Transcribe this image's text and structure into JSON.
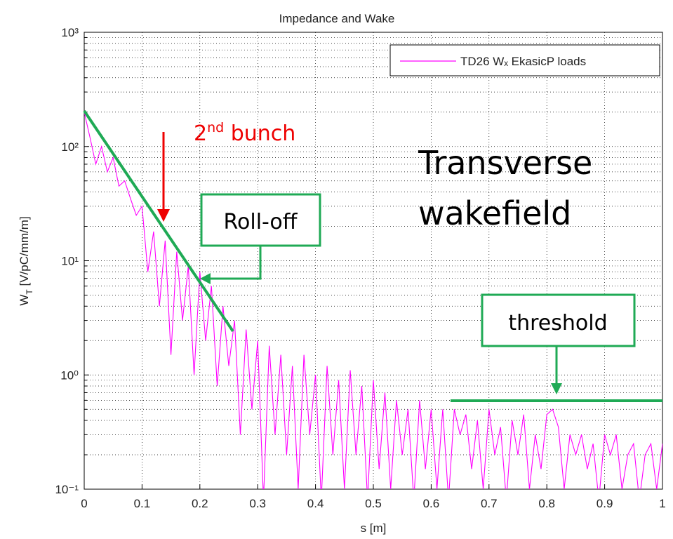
{
  "chart_data": {
    "type": "line",
    "title": "Impedance and Wake",
    "xlabel": "s [m]",
    "ylabel": [
      "W",
      "T",
      " [V/pC/mm/m]"
    ],
    "x": [
      0,
      0.01,
      0.02,
      0.03,
      0.04,
      0.05,
      0.06,
      0.07,
      0.08,
      0.09,
      0.1,
      0.11,
      0.12,
      0.13,
      0.14,
      0.15,
      0.16,
      0.17,
      0.18,
      0.19,
      0.2,
      0.21,
      0.22,
      0.23,
      0.24,
      0.25,
      0.26,
      0.27,
      0.28,
      0.29,
      0.3,
      0.31,
      0.32,
      0.33,
      0.34,
      0.35,
      0.36,
      0.37,
      0.38,
      0.39,
      0.4,
      0.41,
      0.42,
      0.43,
      0.44,
      0.45,
      0.46,
      0.47,
      0.48,
      0.49,
      0.5,
      0.51,
      0.52,
      0.53,
      0.54,
      0.55,
      0.56,
      0.57,
      0.58,
      0.59,
      0.6,
      0.61,
      0.62,
      0.63,
      0.64,
      0.65,
      0.66,
      0.67,
      0.68,
      0.69,
      0.7,
      0.71,
      0.72,
      0.73,
      0.74,
      0.75,
      0.76,
      0.77,
      0.78,
      0.79,
      0.8,
      0.81,
      0.82,
      0.83,
      0.84,
      0.85,
      0.86,
      0.87,
      0.88,
      0.89,
      0.9,
      0.91,
      0.92,
      0.93,
      0.94,
      0.95,
      0.96,
      0.97,
      0.98,
      0.99,
      1
    ],
    "series": [
      {
        "name": "TD26 Wₓ EkasicP loads",
        "color": "#ff00ff",
        "values": [
          200,
          120,
          70,
          100,
          60,
          80,
          45,
          50,
          35,
          25,
          30,
          8,
          18,
          4,
          15,
          1.5,
          12,
          3,
          9,
          1,
          8,
          2,
          6,
          0.8,
          4,
          1.2,
          3,
          0.3,
          2.5,
          0.5,
          2,
          0.08,
          1.8,
          0.3,
          1.5,
          0.2,
          1.2,
          0.1,
          1.5,
          0.3,
          1,
          0.08,
          1.2,
          0.2,
          0.9,
          0.1,
          1.1,
          0.2,
          0.8,
          0.08,
          0.9,
          0.15,
          0.7,
          0.1,
          0.6,
          0.2,
          0.5,
          0.08,
          0.6,
          0.15,
          0.5,
          0.1,
          0.5,
          0.08,
          0.5,
          0.3,
          0.45,
          0.15,
          0.4,
          0.1,
          0.5,
          0.2,
          0.35,
          0.08,
          0.4,
          0.2,
          0.45,
          0.1,
          0.3,
          0.15,
          0.45,
          0.5,
          0.35,
          0.1,
          0.3,
          0.2,
          0.3,
          0.15,
          0.25,
          0.08,
          0.3,
          0.2,
          0.3,
          0.1,
          0.2,
          0.25,
          0.08,
          0.2,
          0.25,
          0.1,
          0.25
        ]
      }
    ],
    "xlim": [
      0,
      1
    ],
    "xticks": [
      0,
      0.1,
      0.2,
      0.3,
      0.4,
      0.5,
      0.6,
      0.7,
      0.8,
      0.9,
      1
    ],
    "ylim": [
      0.1,
      1000
    ],
    "log_y": true,
    "yticks": [
      {
        "value": 0.1,
        "label": "10⁻¹"
      },
      {
        "value": 1,
        "label": "10⁰"
      },
      {
        "value": 10,
        "label": "10¹"
      },
      {
        "value": 100,
        "label": "10²"
      },
      {
        "value": 1000,
        "label": "10³"
      }
    ],
    "grid": true,
    "legend": "upper right",
    "annotations": {
      "bunch": [
        "2",
        "nd",
        " bunch"
      ],
      "transverse": [
        "Transverse",
        "wakefield"
      ],
      "rolloff": "Roll-off",
      "threshold": "threshold"
    }
  }
}
